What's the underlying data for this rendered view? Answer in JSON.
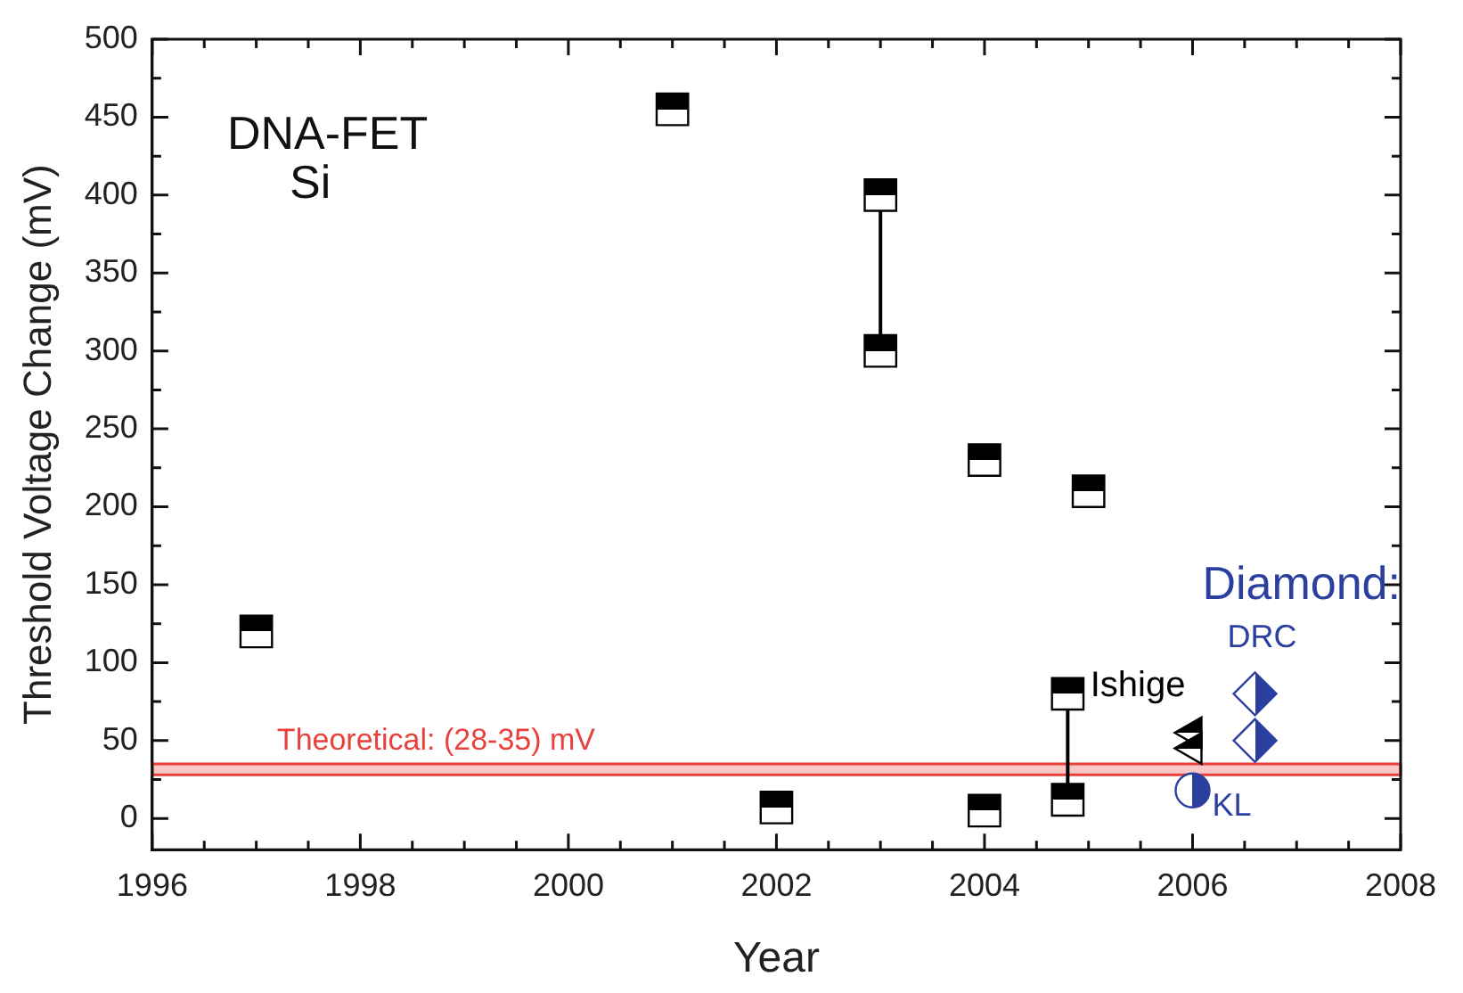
{
  "chart_data": {
    "type": "scatter",
    "xlabel": "Year",
    "ylabel": "Threshold Voltage Change (mV)",
    "xlim": [
      1996,
      2008
    ],
    "xticks": [
      1996,
      {
        "value": 1996.5,
        "label": null
      },
      {
        "value": 1997,
        "label": null
      },
      {
        "value": 1997.5,
        "label": null
      },
      1998,
      {
        "value": 1998.5,
        "label": null
      },
      {
        "value": 1999,
        "label": null
      },
      {
        "value": 1999.5,
        "label": null
      },
      2000,
      {
        "value": 2000.5,
        "label": null
      },
      {
        "value": 2001,
        "label": null
      },
      {
        "value": 2001.5,
        "label": null
      },
      2002,
      {
        "value": 2002.5,
        "label": null
      },
      {
        "value": 2003,
        "label": null
      },
      {
        "value": 2003.5,
        "label": null
      },
      2004,
      {
        "value": 2004.5,
        "label": null
      },
      {
        "value": 2005,
        "label": null
      },
      {
        "value": 2005.5,
        "label": null
      },
      2006,
      {
        "value": 2006.5,
        "label": null
      },
      {
        "value": 2007,
        "label": null
      },
      {
        "value": 2007.5,
        "label": null
      },
      2008
    ],
    "ylim": [
      -20,
      500
    ],
    "yticks": [
      0,
      {
        "value": 25,
        "label": null
      },
      50,
      {
        "value": 75,
        "label": null
      },
      100,
      {
        "value": 125,
        "label": null
      },
      150,
      {
        "value": 175,
        "label": null
      },
      200,
      {
        "value": 225,
        "label": null
      },
      250,
      {
        "value": 275,
        "label": null
      },
      300,
      {
        "value": 325,
        "label": null
      },
      350,
      {
        "value": 375,
        "label": null
      },
      400,
      {
        "value": 425,
        "label": null
      },
      450,
      {
        "value": 475,
        "label": null
      },
      500
    ],
    "grid": false,
    "legend": false,
    "annotations": [
      "DNA-FET",
      "Si",
      "Diamond:"
    ],
    "bands": [
      {
        "axis": "y",
        "from": 28,
        "to": 35,
        "label": "Theoretical: (28-35) mV",
        "color": "#e8413c"
      }
    ],
    "series": [
      {
        "type": "line",
        "color": "#000000",
        "x": [
          2003,
          2003
        ],
        "values": [
          300,
          400
        ]
      },
      {
        "type": "line",
        "color": "#000000",
        "x": [
          2004.8,
          2004.8
        ],
        "values": [
          12,
          80
        ]
      },
      {
        "marker": "square",
        "color": "#000000",
        "x": [
          1997,
          2001,
          2002,
          2003,
          2003,
          2004,
          2004,
          2004.8,
          2004.8,
          2005
        ],
        "values": [
          120,
          455,
          7,
          400,
          300,
          230,
          5,
          80,
          12,
          210
        ]
      },
      {
        "name": "Ishige",
        "marker": "triangle",
        "color": "#000000",
        "x": [
          2006,
          2006
        ],
        "values": [
          55,
          45
        ]
      },
      {
        "name": "DRC",
        "marker": "diamond",
        "color": "#2b3f9e",
        "x": [
          2006.6,
          2006.6
        ],
        "values": [
          80,
          50
        ]
      },
      {
        "name": "KL",
        "marker": "circle",
        "color": "#2b3f9e",
        "x": [
          2006
        ],
        "values": [
          18
        ]
      }
    ]
  }
}
